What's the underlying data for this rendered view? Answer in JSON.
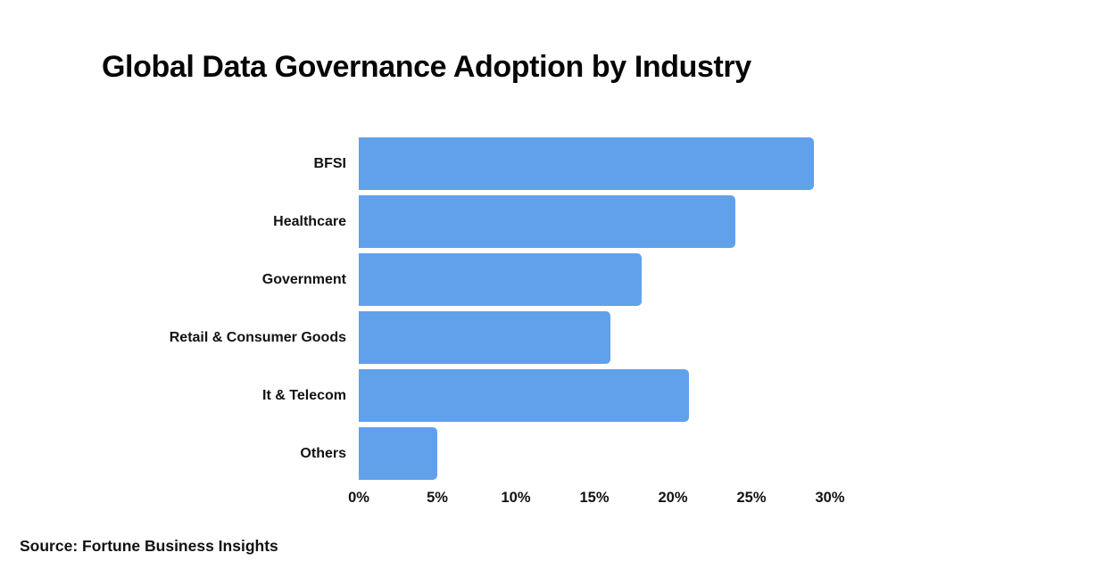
{
  "title": "Global Data Governance Adoption by Industry",
  "source_note": "Source: Fortune Business Insights",
  "colors": {
    "background": "#ffffff",
    "bar": "#61a1ec",
    "text": "#121212",
    "title": "#060606"
  },
  "chart_data": {
    "type": "bar",
    "orientation": "horizontal",
    "title": "Global Data Governance Adoption by Industry",
    "categories": [
      "BFSI",
      "Healthcare",
      "Government",
      "Retail & Consumer Goods",
      "It & Telecom",
      "Others"
    ],
    "values": [
      29,
      24,
      18,
      16,
      21,
      5
    ],
    "unit": "%",
    "xlabel": "",
    "ylabel": "",
    "xlim": [
      0,
      30
    ],
    "x_ticks": [
      "0%",
      "5%",
      "10%",
      "15%",
      "20%",
      "25%",
      "30%"
    ],
    "x_tick_values": [
      0,
      5,
      10,
      15,
      20,
      25,
      30
    ],
    "grid": false,
    "legend": false,
    "axis_lines": false,
    "source": "Source: Fortune Business Insights"
  }
}
